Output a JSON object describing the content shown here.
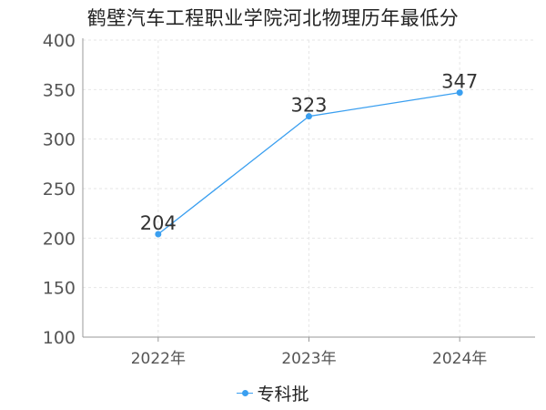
{
  "chart_data": {
    "type": "line",
    "title": "鹤壁汽车工程职业学院河北物理历年最低分",
    "categories": [
      "2022年",
      "2023年",
      "2024年"
    ],
    "series": [
      {
        "name": "专科批",
        "values": [
          204,
          323,
          347
        ]
      }
    ],
    "ylim": [
      100,
      400
    ],
    "yticks": [
      100,
      150,
      200,
      250,
      300,
      350,
      400
    ],
    "grid": true,
    "legend_position": "bottom",
    "xlabel": "",
    "ylabel": ""
  },
  "colors": {
    "series": "#3a9ff0",
    "grid": "#e6e6e6",
    "axis": "#999999"
  }
}
